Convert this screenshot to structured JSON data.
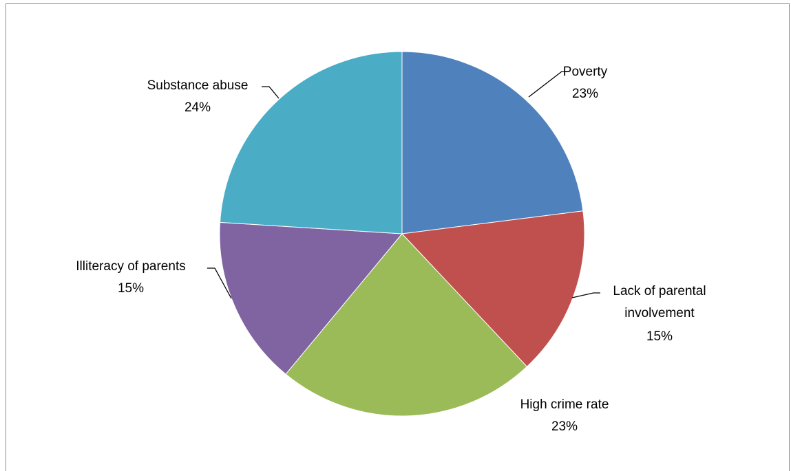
{
  "chart_data": {
    "type": "pie",
    "slices": [
      {
        "label": "Poverty",
        "percent_label": "23%",
        "value": 23,
        "color": "#4F81BD"
      },
      {
        "label": "Lack of parental involvement",
        "label_lines": [
          "Lack of parental",
          "involvement"
        ],
        "percent_label": "15%",
        "value": 15,
        "color": "#C0504D"
      },
      {
        "label": "High crime rate",
        "percent_label": "23%",
        "value": 23,
        "color": "#9BBB59"
      },
      {
        "label": "Illiteracy of parents",
        "percent_label": "15%",
        "value": 15,
        "color": "#8064A2"
      },
      {
        "label": "Substance abuse",
        "percent_label": "24%",
        "value": 24,
        "color": "#4BACC6"
      }
    ],
    "start_angle": "12 o'clock",
    "direction": "clockwise",
    "legend": "none",
    "data_labels": "outside with leader lines"
  }
}
